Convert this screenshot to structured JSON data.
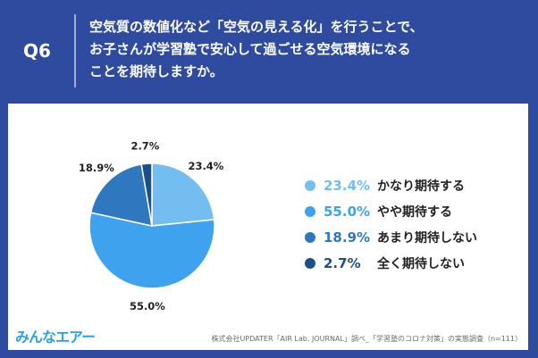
{
  "header": {
    "q_label": "Q6",
    "question_lines": [
      "空気質の数値化など「空気の見える化」を行うことで、",
      "お子さんが学習塾で安心して過ごせる空気環境になる",
      "ことを期待しますか。"
    ]
  },
  "chart_data": {
    "type": "pie",
    "categories": [
      "かなり期待する",
      "やや期待する",
      "あまり期待しない",
      "全く期待しない"
    ],
    "values": [
      23.4,
      55.0,
      18.9,
      2.7
    ],
    "display_values": [
      "23.4%",
      "55.0%",
      "18.9%",
      "2.7%"
    ],
    "colors": [
      "#74bdf1",
      "#3ea2ee",
      "#2f77bf",
      "#1d4f87"
    ],
    "legend_placement": "right",
    "start_angle_deg": 0,
    "direction": "clockwise"
  },
  "legend": {
    "items": [
      {
        "pct": "23.4%",
        "label": "かなり期待する"
      },
      {
        "pct": "55.0%",
        "label": "やや期待する"
      },
      {
        "pct": "18.9%",
        "label": "あまり期待しない"
      },
      {
        "pct": "2.7%",
        "label": "全く期待しない"
      }
    ]
  },
  "footer": {
    "logo_text": "みんなエアー",
    "source_text": "株式会社UPDATER「AIR Lab. JOURNAL」調べ_「学習塾のコロナ対策」の実態調査（n=111）"
  }
}
